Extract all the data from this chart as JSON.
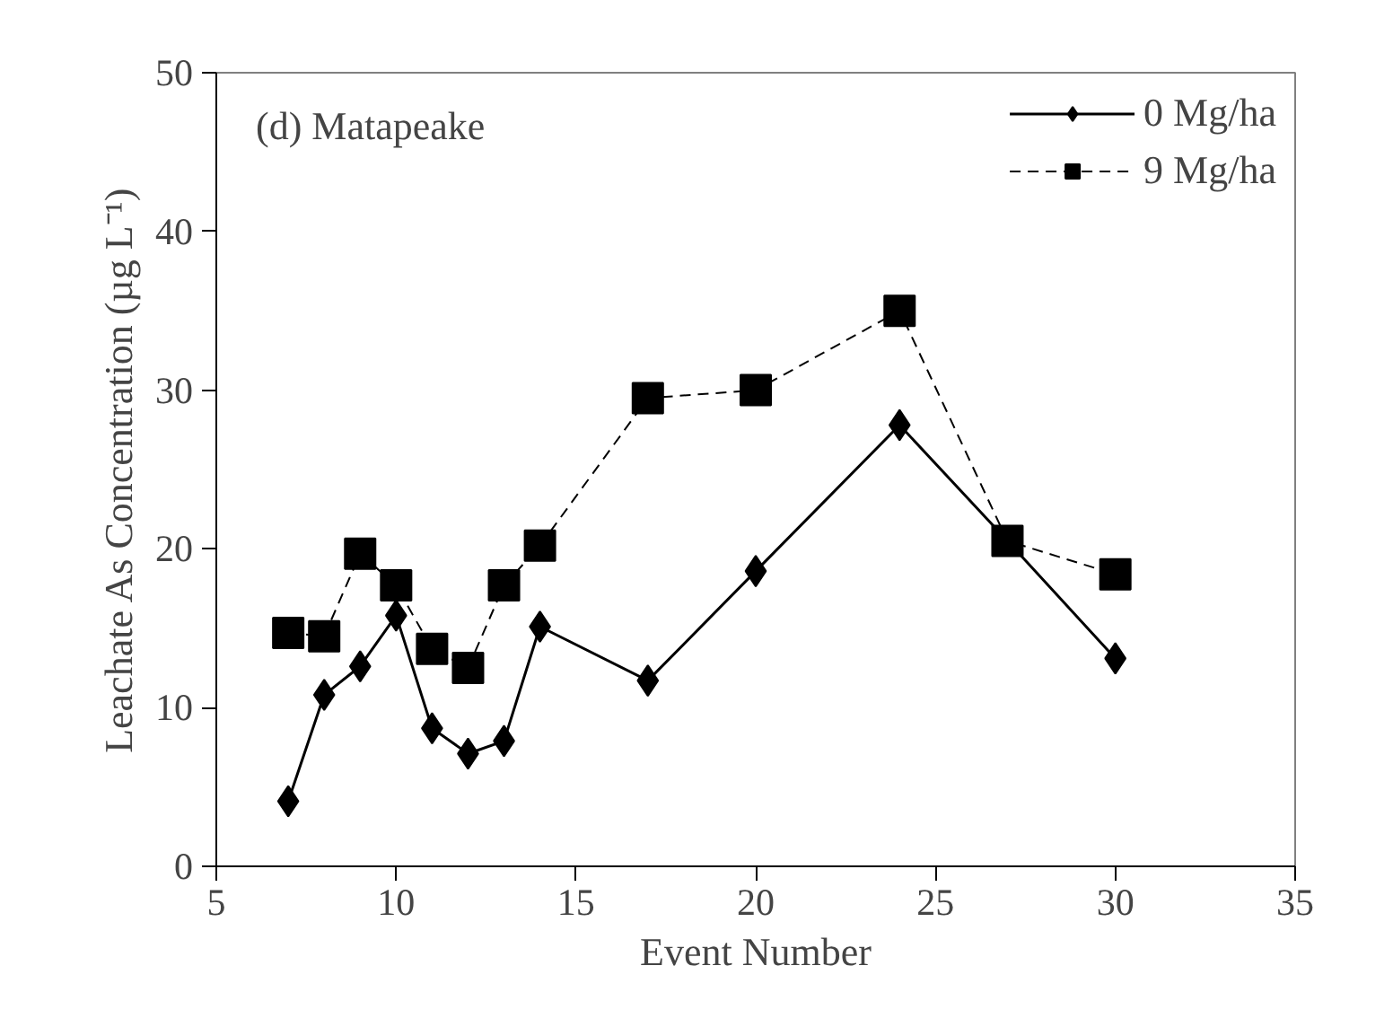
{
  "chart_data": {
    "type": "line",
    "xlabel": "Event Number",
    "ylabel": "Leachate As Concentration (µg L⁻¹)",
    "annotations": [
      "(d) Matapeake"
    ],
    "x": [
      7,
      8,
      9,
      10,
      11,
      12,
      13,
      14,
      17,
      20,
      24,
      27,
      30
    ],
    "series": [
      {
        "name": "0 Mg/ha",
        "color": "#000000",
        "marker": "diamond",
        "line_style": "solid",
        "values": [
          4.1,
          10.8,
          12.6,
          15.8,
          8.7,
          7.1,
          7.9,
          15.1,
          11.7,
          18.6,
          27.8,
          20.5,
          13.1
        ]
      },
      {
        "name": "9 Mg/ha",
        "color": "#000000",
        "marker": "square",
        "line_style": "dashed",
        "values": [
          14.7,
          14.5,
          19.7,
          17.7,
          13.7,
          12.5,
          17.7,
          20.2,
          29.5,
          30.0,
          35.0,
          20.5,
          18.4
        ]
      }
    ],
    "xlim": [
      5,
      35
    ],
    "xticks": [
      5,
      10,
      15,
      20,
      25,
      30,
      35
    ],
    "ylim": [
      0,
      50
    ],
    "yticks": [
      0,
      10,
      20,
      30,
      40,
      50
    ],
    "grid": false,
    "legend": "top right"
  }
}
